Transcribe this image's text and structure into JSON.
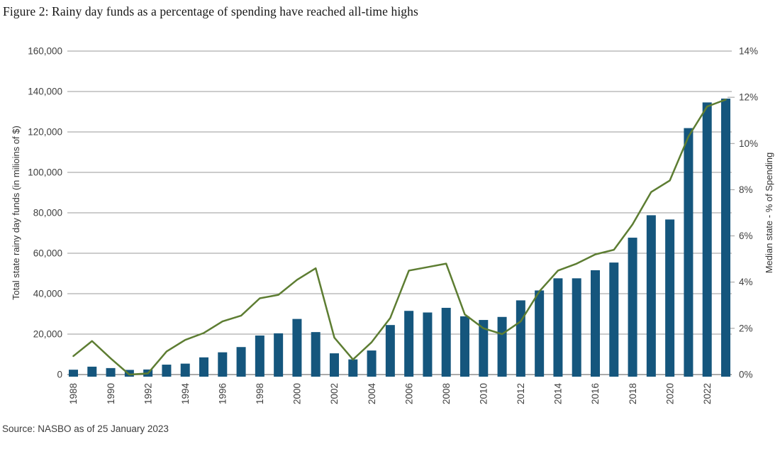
{
  "title": "Figure 2: Rainy day funds as a percentage of spending have reached all-time highs",
  "source": "Source: NASBO as of 25 January 2023",
  "colors": {
    "bar": "#15567d",
    "line": "#5d7d32",
    "grid": "#999999",
    "baseline": "#ababab",
    "tick_text": "#404040",
    "axis_title_text": "#333333"
  },
  "chart_data": {
    "type": "bar+line combo",
    "x": [
      1988,
      1989,
      1990,
      1991,
      1992,
      1993,
      1994,
      1995,
      1996,
      1997,
      1998,
      1999,
      2000,
      2001,
      2002,
      2003,
      2004,
      2005,
      2006,
      2007,
      2008,
      2009,
      2010,
      2011,
      2012,
      2013,
      2014,
      2015,
      2016,
      2017,
      2018,
      2019,
      2020,
      2021,
      2022,
      2023
    ],
    "x_tick_labels": [
      "1988",
      "1990",
      "1992",
      "1994",
      "1996",
      "1998",
      "2000",
      "2002",
      "2004",
      "2006",
      "2008",
      "2010",
      "2012",
      "2014",
      "2016",
      "2018",
      "2020",
      "2022"
    ],
    "series": [
      {
        "name": "Total state rainy day funds",
        "type": "bar",
        "axis": "left",
        "values": [
          2400,
          3900,
          3200,
          2300,
          2500,
          4900,
          5400,
          8500,
          11000,
          13600,
          19300,
          20400,
          27500,
          21000,
          10500,
          7500,
          11900,
          24500,
          31500,
          30700,
          33000,
          28800,
          27000,
          28500,
          36700,
          41600,
          47600,
          47600,
          51600,
          55400,
          67700,
          78800,
          76700,
          121900,
          134600,
          136500
        ]
      },
      {
        "name": "Median state - % of Spending",
        "type": "line",
        "axis": "right",
        "values": [
          0.8,
          1.45,
          0.7,
          0.0,
          0.05,
          1.0,
          1.5,
          1.8,
          2.3,
          2.55,
          3.3,
          3.45,
          4.1,
          4.6,
          1.6,
          0.65,
          1.4,
          2.45,
          4.5,
          4.65,
          4.8,
          2.6,
          2.0,
          1.75,
          2.3,
          3.6,
          4.5,
          4.8,
          5.2,
          5.4,
          6.5,
          7.9,
          8.4,
          10.3,
          11.6,
          11.9
        ]
      }
    ],
    "left_axis": {
      "label": "Total state rainy day funds (in milioins of $)",
      "min": 0,
      "max": 160000,
      "step": 20000,
      "tick_labels": [
        "0",
        "20,000",
        "40,000",
        "60,000",
        "80,000",
        "100,000",
        "120,000",
        "140,000",
        "160,000"
      ]
    },
    "right_axis": {
      "label": "Median state  - % of Spending",
      "min": 0,
      "max": 14,
      "step": 2,
      "tick_labels": [
        "0%",
        "2%",
        "4%",
        "6%",
        "8%",
        "10%",
        "12%",
        "14%"
      ]
    },
    "grid": "horizontal gridlines at left-axis steps",
    "legend": "none"
  }
}
